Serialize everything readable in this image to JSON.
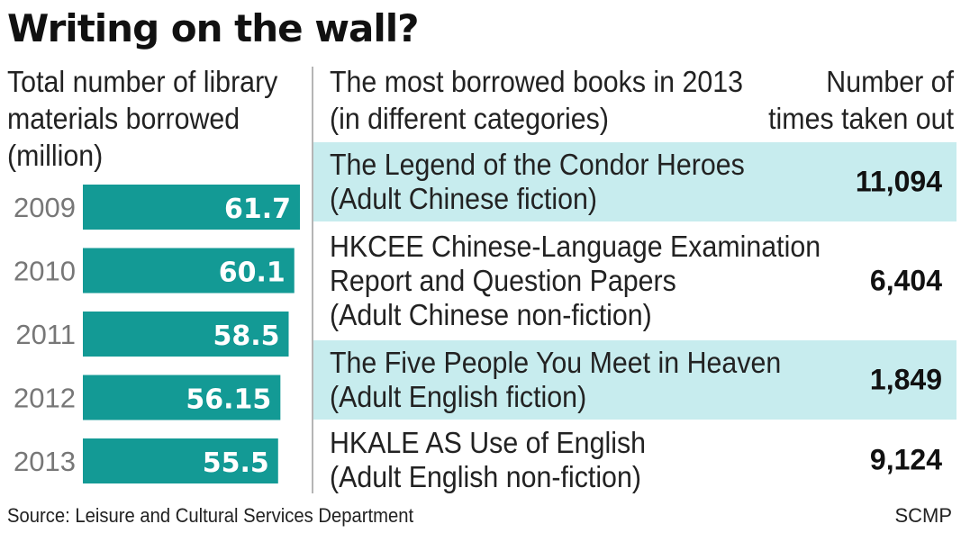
{
  "title": "Writing on the wall?",
  "left_heading": [
    "Total number of library",
    "materials borrowed",
    "(million)"
  ],
  "right_heading": [
    "The most borrowed books in 2013",
    "(in different categories)"
  ],
  "count_heading": [
    "Number of",
    "times taken out"
  ],
  "colors": {
    "bar": "#139a95",
    "bar_label": "#ffffff",
    "year_label": "#777777",
    "row_shade": "#c7ecee"
  },
  "chart_data": {
    "type": "bar",
    "orientation": "horizontal",
    "title": "Total number of library materials borrowed (million)",
    "categories": [
      "2009",
      "2010",
      "2011",
      "2012",
      "2013"
    ],
    "values": [
      61.7,
      60.1,
      58.5,
      56.15,
      55.5
    ],
    "value_labels": [
      "61.7",
      "60.1",
      "58.5",
      "56.15",
      "55.5"
    ]
  },
  "books": [
    {
      "title": "The Legend of the Condor Heroes",
      "category": "(Adult Chinese fiction)",
      "count": "11,094",
      "shaded": true
    },
    {
      "title": "HKCEE Chinese-Language Examination Report and Question Papers",
      "category": "(Adult Chinese non-fiction)",
      "count": "6,404",
      "shaded": false
    },
    {
      "title": "The Five People You Meet in Heaven",
      "category": "(Adult English fiction)",
      "count": "1,849",
      "shaded": true
    },
    {
      "title": "HKALE AS Use of English",
      "category": "(Adult English non-fiction)",
      "count": "9,124",
      "shaded": false
    }
  ],
  "footer": {
    "source": "Source: Leisure and Cultural Services Department",
    "credit": "SCMP"
  }
}
